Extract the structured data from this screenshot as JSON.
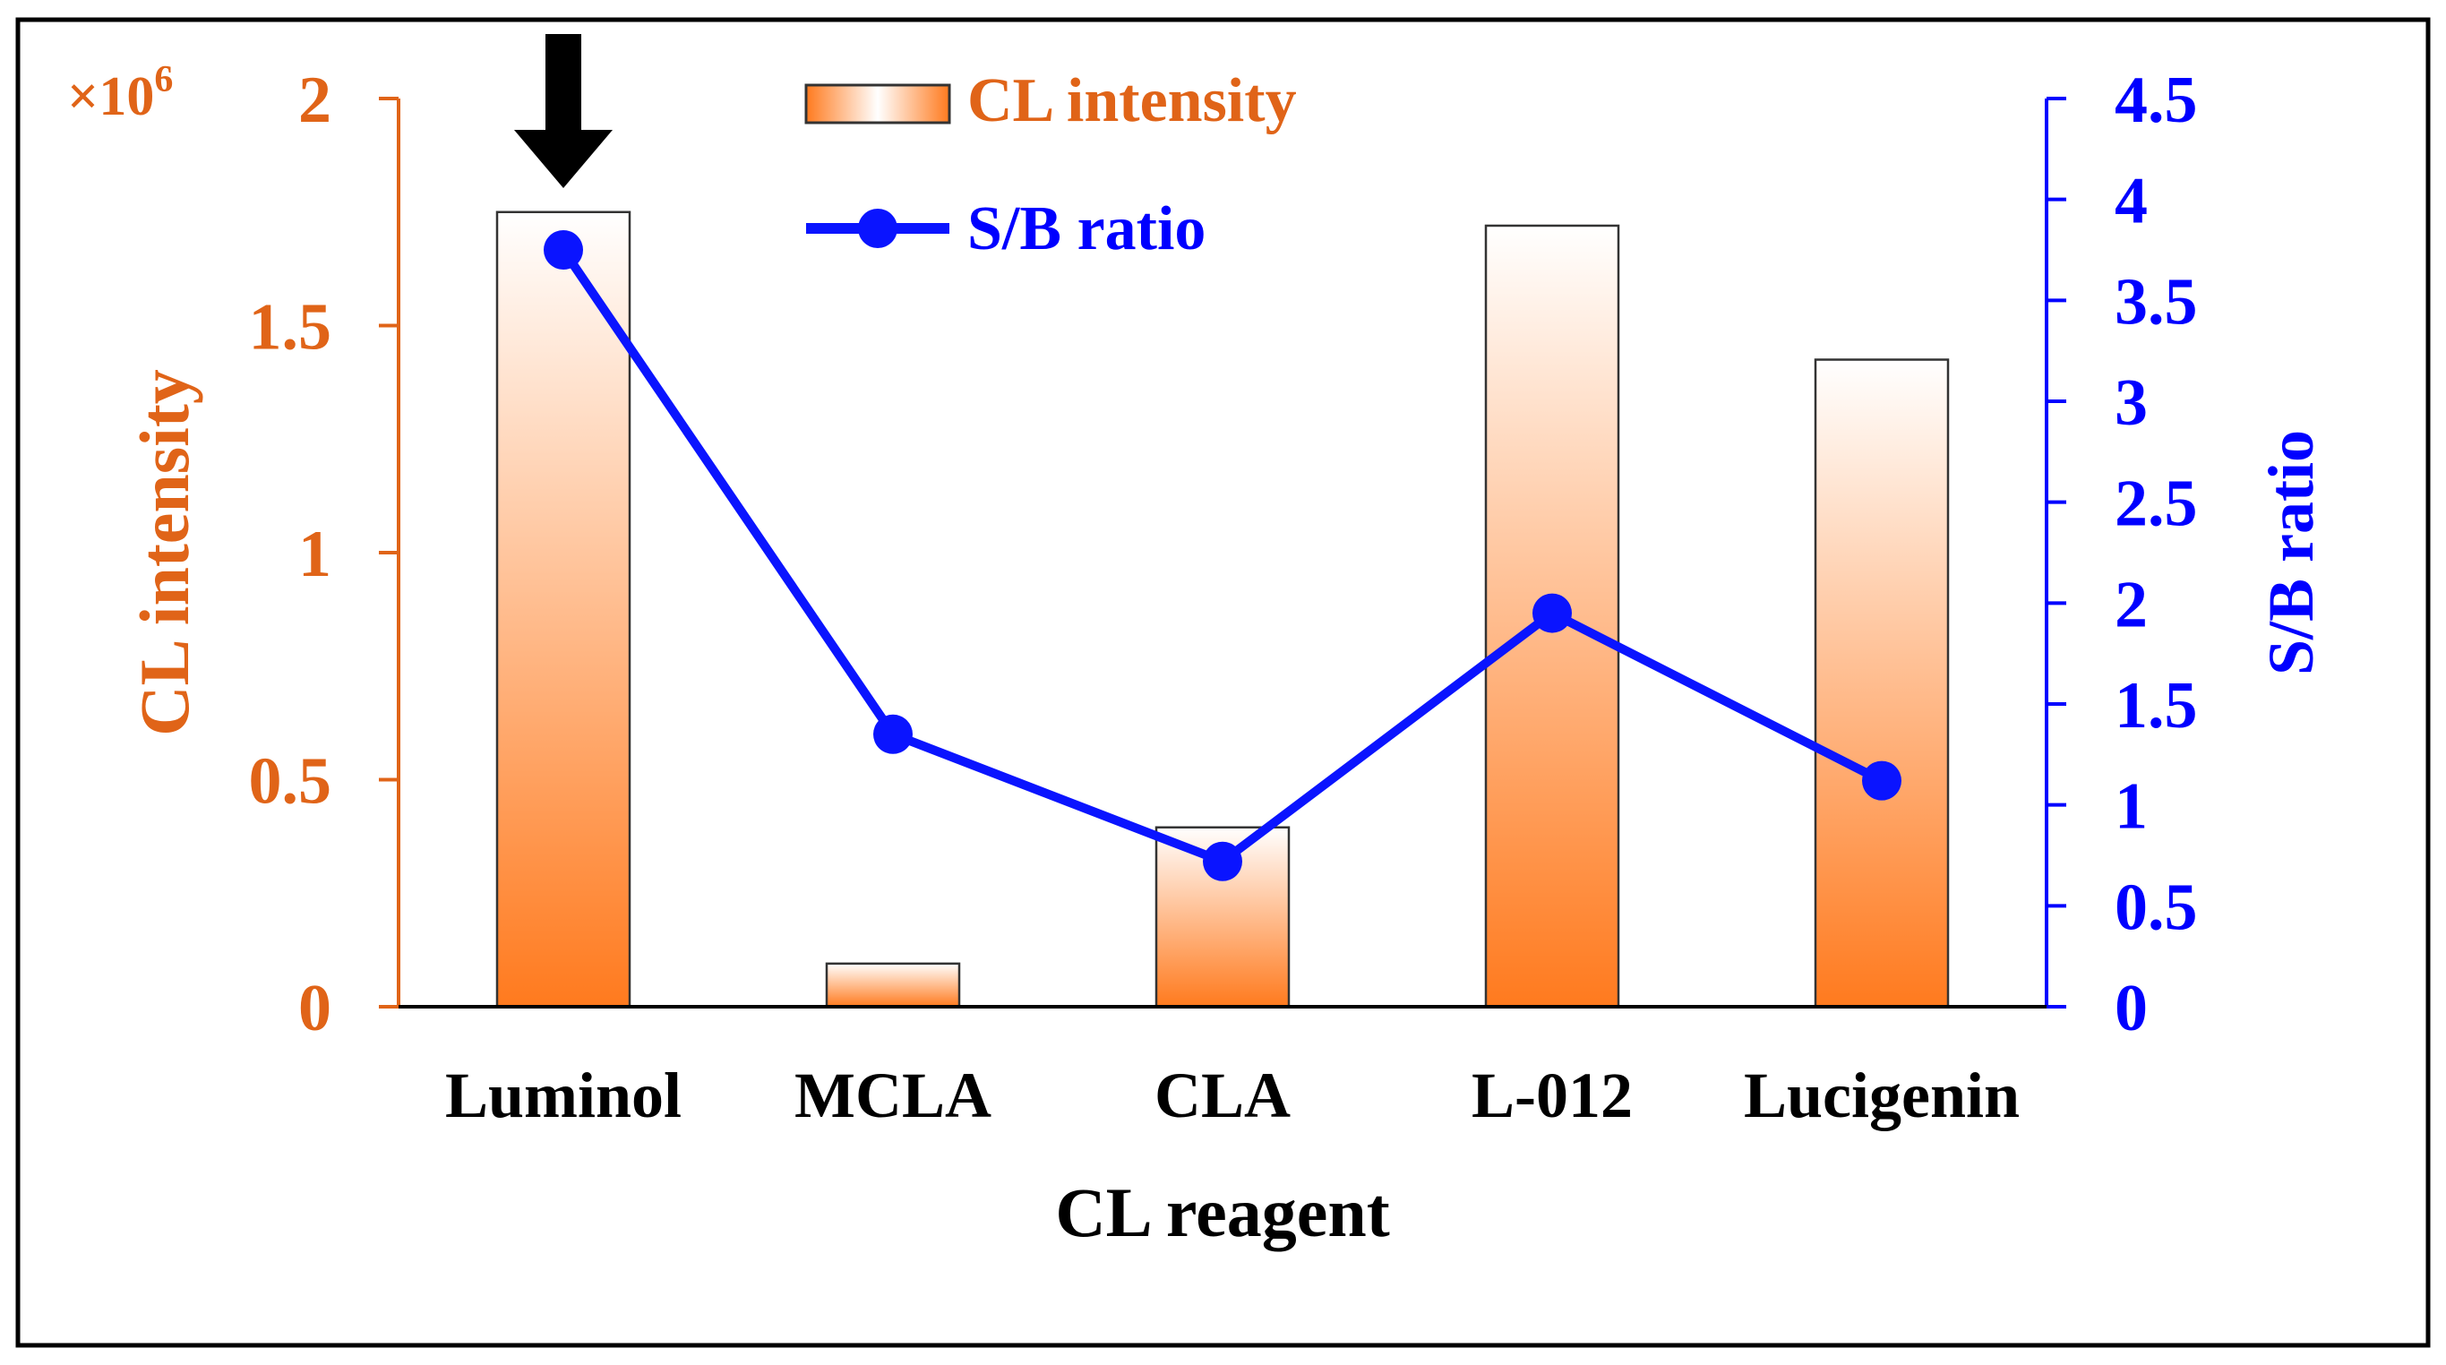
{
  "chart_data": {
    "type": "bar+line",
    "categories": [
      "Luminol",
      "MCLA",
      "CLA",
      "L-012",
      "Lucigenin"
    ],
    "xlabel": "CL reagent",
    "series": [
      {
        "name": "CL intensity",
        "kind": "bar",
        "axis": "left",
        "values": [
          1.75,
          0.095,
          0.395,
          1.72,
          1.425
        ]
      },
      {
        "name": "S/B ratio",
        "kind": "line",
        "axis": "right",
        "values": [
          3.75,
          1.35,
          0.72,
          1.95,
          1.12
        ]
      }
    ],
    "left_axis": {
      "label": "CL intensity",
      "multiplier": "×10",
      "multiplier_exp": "6",
      "ylim": [
        0,
        2
      ],
      "ticks": [
        0,
        0.5,
        1,
        1.5,
        2
      ],
      "tick_labels": [
        "0",
        "0.5",
        "1",
        "1.5",
        "2"
      ],
      "color": "#e06418"
    },
    "right_axis": {
      "label": "S/B ratio",
      "ylim": [
        0,
        4.5
      ],
      "ticks": [
        0,
        0.5,
        1,
        1.5,
        2,
        2.5,
        3,
        3.5,
        4,
        4.5
      ],
      "tick_labels": [
        "0",
        "0.5",
        "1",
        "1.5",
        "2",
        "2.5",
        "3",
        "3.5",
        "4",
        "4.5"
      ],
      "color": "#0000ff"
    },
    "legend": {
      "placement": "top-center",
      "items": [
        {
          "label": "CL intensity",
          "symbol": "bar"
        },
        {
          "label": "S/B ratio",
          "symbol": "line-marker"
        }
      ]
    },
    "annotation": {
      "type": "arrow",
      "target_category": "Luminol",
      "direction": "down"
    },
    "grid": false,
    "colors": {
      "bar_top": "#ffffff",
      "bar_bottom": "#ff7a1e",
      "bar_stroke": "#333333",
      "line": "#0a14ff",
      "marker": "#0a14ff",
      "frame": "#000000",
      "arrow": "#000000"
    }
  }
}
